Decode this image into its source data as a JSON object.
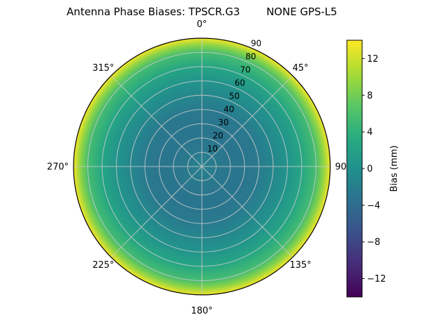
{
  "title": "Antenna Phase Biases: TPSCR.G3        NONE GPS-L5",
  "chart_data": {
    "type": "heatmap",
    "projection": "polar",
    "title": "Antenna Phase Biases: TPSCR.G3        NONE GPS-L5",
    "antenna": "TPSCR.G3",
    "dome": "NONE",
    "signal": "GPS-L5",
    "colormap": "viridis",
    "theta_direction": "clockwise",
    "theta_zero": "top",
    "angular_ticks": [
      {
        "deg": 0,
        "label": "0°"
      },
      {
        "deg": 45,
        "label": "45°"
      },
      {
        "deg": 90,
        "label": "90°"
      },
      {
        "deg": 135,
        "label": "135°"
      },
      {
        "deg": 180,
        "label": "180°"
      },
      {
        "deg": 225,
        "label": "225°"
      },
      {
        "deg": 270,
        "label": "270°"
      },
      {
        "deg": 315,
        "label": "315°"
      }
    ],
    "radial_ticks": [
      10,
      20,
      30,
      40,
      50,
      60,
      70,
      80,
      90
    ],
    "radial_label_angle_deg": 22.5,
    "radial_max": 90,
    "radial_profile": {
      "comment": "bias (mm) versus radial coordinate, azimuth-symmetric",
      "radius": [
        0,
        10,
        20,
        30,
        40,
        50,
        60,
        70,
        80,
        85,
        90
      ],
      "bias_mm": [
        -1.5,
        -2.5,
        -3,
        -3,
        -2.5,
        -1,
        0.5,
        2.5,
        5.5,
        9,
        13.5
      ]
    },
    "colorbar": {
      "label": "Bias (mm)",
      "ticks": [
        -12,
        -8,
        -4,
        0,
        4,
        8,
        12
      ],
      "vmin": -14,
      "vmax": 14
    },
    "grid": {
      "color": "#cccccc",
      "spine_color": "#000000"
    }
  }
}
